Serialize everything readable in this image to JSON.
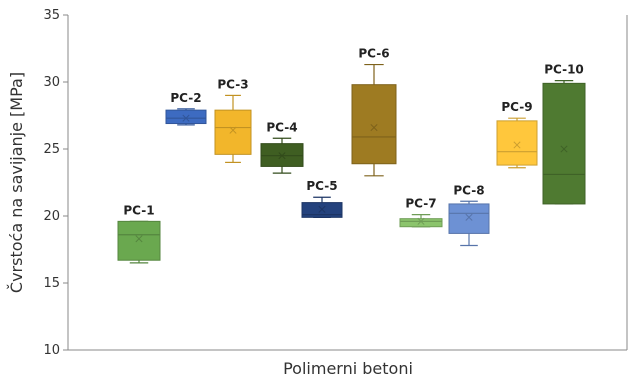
{
  "chart_data": {
    "type": "box",
    "xlabel": "Polimerni betoni",
    "ylabel": "Čvrstoća na savijanje [MPa]",
    "ylim": [
      10,
      35
    ],
    "yticks": [
      10,
      15,
      20,
      25,
      30,
      35
    ],
    "grid": false,
    "boxes": [
      {
        "label": "PC-1",
        "min": 16.5,
        "q1": 16.7,
        "median": 18.6,
        "q3": 19.6,
        "max": 19.6,
        "mean": 18.3,
        "color": "#6aa84f"
      },
      {
        "label": "PC-2",
        "min": 26.8,
        "q1": 26.9,
        "median": 27.3,
        "q3": 27.9,
        "max": 28.0,
        "mean": 27.3,
        "color": "#3d6bc1"
      },
      {
        "label": "PC-3",
        "min": 24.0,
        "q1": 24.6,
        "median": 26.6,
        "q3": 27.9,
        "max": 29.0,
        "mean": 26.4,
        "color": "#f2b62b"
      },
      {
        "label": "PC-4",
        "min": 23.2,
        "q1": 23.7,
        "median": 24.5,
        "q3": 25.4,
        "max": 25.8,
        "mean": 24.5,
        "color": "#3f5e22"
      },
      {
        "label": "PC-5",
        "min": 19.9,
        "q1": 19.9,
        "median": 20.1,
        "q3": 21.0,
        "max": 21.4,
        "mean": 20.5,
        "color": "#24427d"
      },
      {
        "label": "PC-6",
        "min": 23.0,
        "q1": 23.9,
        "median": 25.9,
        "q3": 29.8,
        "max": 31.3,
        "mean": 26.6,
        "color": "#9e7b22"
      },
      {
        "label": "PC-7",
        "min": 19.2,
        "q1": 19.2,
        "median": 19.6,
        "q3": 19.8,
        "max": 20.1,
        "mean": 19.6,
        "color": "#8bc46c"
      },
      {
        "label": "PC-8",
        "min": 17.8,
        "q1": 18.7,
        "median": 20.2,
        "q3": 20.9,
        "max": 21.1,
        "mean": 19.9,
        "color": "#6d91d4"
      },
      {
        "label": "PC-9",
        "min": 23.6,
        "q1": 23.8,
        "median": 24.8,
        "q3": 27.1,
        "max": 27.3,
        "mean": 25.3,
        "color": "#ffc73c"
      },
      {
        "label": "PC-10",
        "min": 20.9,
        "q1": 20.9,
        "median": 23.1,
        "q3": 29.9,
        "max": 30.1,
        "mean": 25.0,
        "color": "#4f7a31"
      }
    ]
  }
}
